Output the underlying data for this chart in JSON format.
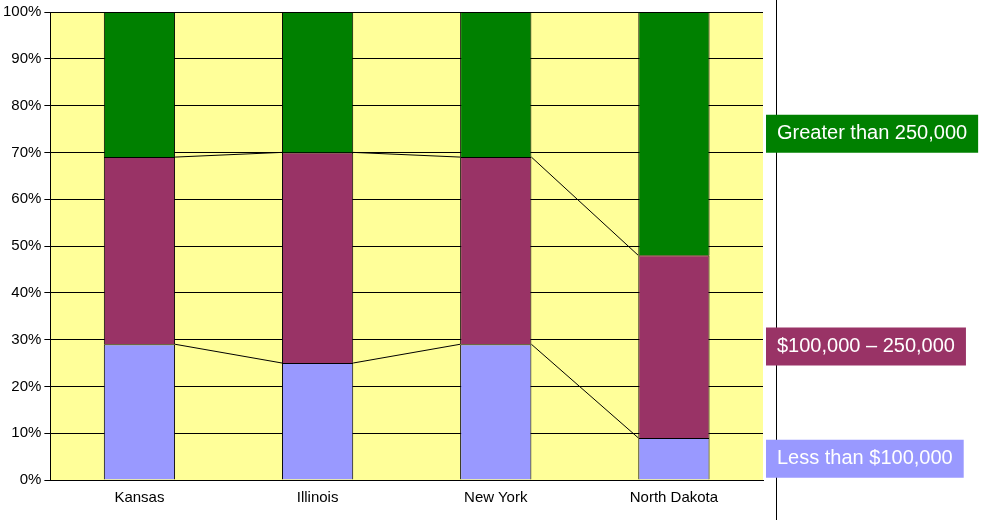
{
  "chart_data": {
    "type": "bar",
    "stacked": true,
    "categories": [
      "Kansas",
      "Illinois",
      "New York",
      "North Dakota"
    ],
    "series": [
      {
        "name": "Less than $100,000",
        "color": "#9999ff",
        "values": [
          29,
          25,
          29,
          9
        ]
      },
      {
        "name": "$100,000 – 250,000",
        "color": "#993366",
        "values": [
          40,
          45,
          40,
          39
        ]
      },
      {
        "name": "Greater than 250,000",
        "color": "#008000",
        "values": [
          31,
          30,
          31,
          52
        ]
      }
    ],
    "ylim": [
      0,
      100
    ],
    "yticks": [
      {
        "value": 0,
        "label": "0%"
      },
      {
        "value": 10,
        "label": "10%"
      },
      {
        "value": 20,
        "label": "20%"
      },
      {
        "value": 30,
        "label": "30%"
      },
      {
        "value": 40,
        "label": "40%"
      },
      {
        "value": 50,
        "label": "50%"
      },
      {
        "value": 60,
        "label": "60%"
      },
      {
        "value": 70,
        "label": "70%"
      },
      {
        "value": 80,
        "label": "80%"
      },
      {
        "value": 90,
        "label": "90%"
      },
      {
        "value": 100,
        "label": "100%"
      }
    ],
    "grid": "y",
    "legend": "right"
  }
}
